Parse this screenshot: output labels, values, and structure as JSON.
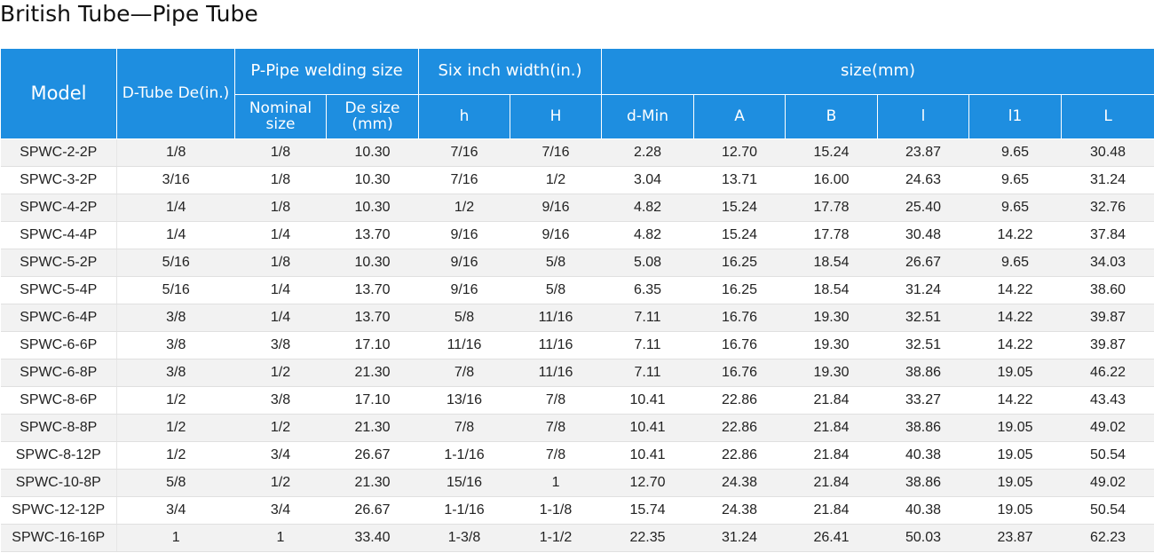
{
  "title": "British Tube—Pipe Tube",
  "headers": {
    "model": "Model",
    "dtube": "D-Tube De(in.)",
    "pipe_group": "P-Pipe welding size",
    "six_group": "Six inch width(in.)",
    "size_group": "size(mm)",
    "sub": {
      "nominal": "Nominal size",
      "desize": "De size (mm)",
      "h_small": "h",
      "h_big": "H",
      "dmin": "d-Min",
      "a": "A",
      "b": "B",
      "l": "l",
      "l1": "l1",
      "L": "L"
    }
  },
  "rows": [
    [
      "SPWC-2-2P",
      "1/8",
      "1/8",
      "10.30",
      "7/16",
      "7/16",
      "2.28",
      "12.70",
      "15.24",
      "23.87",
      "9.65",
      "30.48"
    ],
    [
      "SPWC-3-2P",
      "3/16",
      "1/8",
      "10.30",
      "7/16",
      "1/2",
      "3.04",
      "13.71",
      "16.00",
      "24.63",
      "9.65",
      "31.24"
    ],
    [
      "SPWC-4-2P",
      "1/4",
      "1/8",
      "10.30",
      "1/2",
      "9/16",
      "4.82",
      "15.24",
      "17.78",
      "25.40",
      "9.65",
      "32.76"
    ],
    [
      "SPWC-4-4P",
      "1/4",
      "1/4",
      "13.70",
      "9/16",
      "9/16",
      "4.82",
      "15.24",
      "17.78",
      "30.48",
      "14.22",
      "37.84"
    ],
    [
      "SPWC-5-2P",
      "5/16",
      "1/8",
      "10.30",
      "9/16",
      "5/8",
      "5.08",
      "16.25",
      "18.54",
      "26.67",
      "9.65",
      "34.03"
    ],
    [
      "SPWC-5-4P",
      "5/16",
      "1/4",
      "13.70",
      "9/16",
      "5/8",
      "6.35",
      "16.25",
      "18.54",
      "31.24",
      "14.22",
      "38.60"
    ],
    [
      "SPWC-6-4P",
      "3/8",
      "1/4",
      "13.70",
      "5/8",
      "11/16",
      "7.11",
      "16.76",
      "19.30",
      "32.51",
      "14.22",
      "39.87"
    ],
    [
      "SPWC-6-6P",
      "3/8",
      "3/8",
      "17.10",
      "11/16",
      "11/16",
      "7.11",
      "16.76",
      "19.30",
      "32.51",
      "14.22",
      "39.87"
    ],
    [
      "SPWC-6-8P",
      "3/8",
      "1/2",
      "21.30",
      "7/8",
      "11/16",
      "7.11",
      "16.76",
      "19.30",
      "38.86",
      "19.05",
      "46.22"
    ],
    [
      "SPWC-8-6P",
      "1/2",
      "3/8",
      "17.10",
      "13/16",
      "7/8",
      "10.41",
      "22.86",
      "21.84",
      "33.27",
      "14.22",
      "43.43"
    ],
    [
      "SPWC-8-8P",
      "1/2",
      "1/2",
      "21.30",
      "7/8",
      "7/8",
      "10.41",
      "22.86",
      "21.84",
      "38.86",
      "19.05",
      "49.02"
    ],
    [
      "SPWC-8-12P",
      "1/2",
      "3/4",
      "26.67",
      "1-1/16",
      "7/8",
      "10.41",
      "22.86",
      "21.84",
      "40.38",
      "19.05",
      "50.54"
    ],
    [
      "SPWC-10-8P",
      "5/8",
      "1/2",
      "21.30",
      "15/16",
      "1",
      "12.70",
      "24.38",
      "21.84",
      "38.86",
      "19.05",
      "49.02"
    ],
    [
      "SPWC-12-12P",
      "3/4",
      "3/4",
      "26.67",
      "1-1/16",
      "1-1/8",
      "15.74",
      "24.38",
      "21.84",
      "40.38",
      "19.05",
      "50.54"
    ],
    [
      "SPWC-16-16P",
      "1",
      "1",
      "33.40",
      "1-3/8",
      "1-1/2",
      "22.35",
      "31.24",
      "26.41",
      "50.03",
      "23.87",
      "62.23"
    ]
  ]
}
